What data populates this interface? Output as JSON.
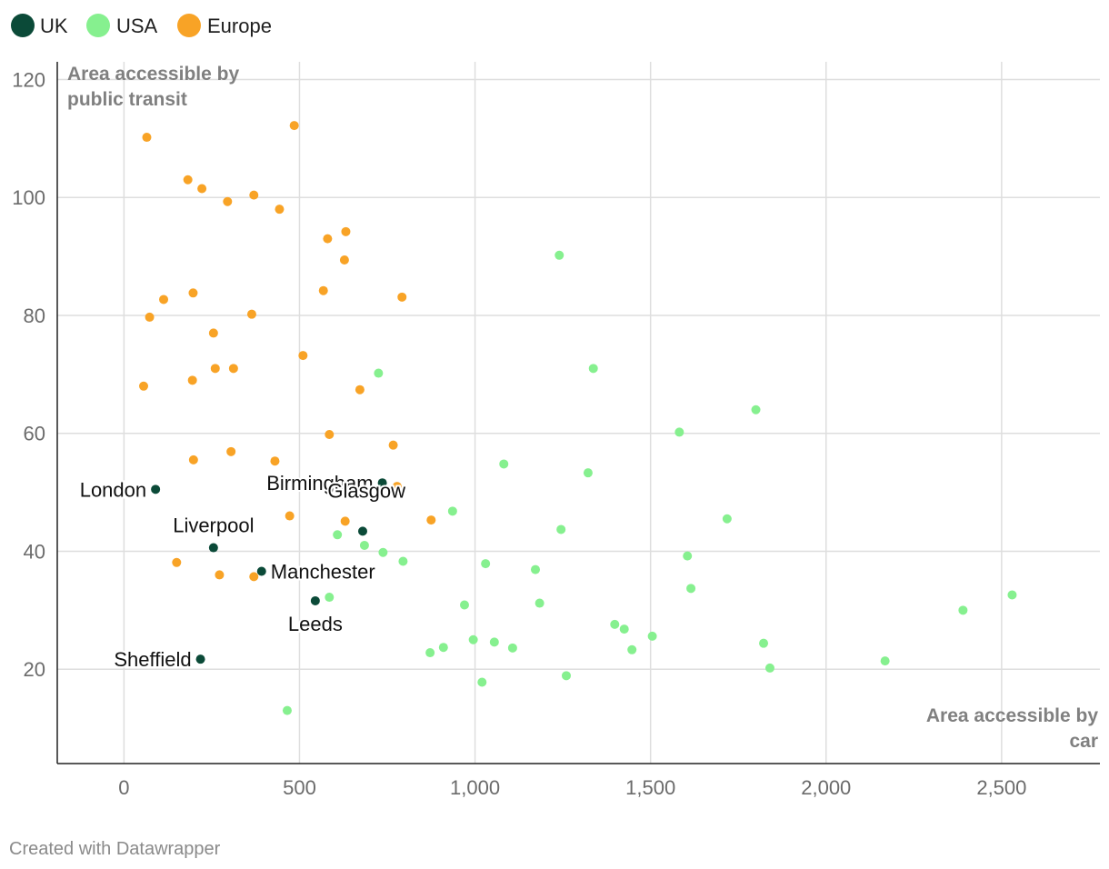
{
  "legend": [
    {
      "name": "UK",
      "color": "#0b4a38"
    },
    {
      "name": "USA",
      "color": "#86f08f"
    },
    {
      "name": "Europe",
      "color": "#f8a326"
    }
  ],
  "footer": "Created with Datawrapper",
  "chart_data": {
    "type": "scatter",
    "ylabel": [
      "Area accessible by",
      "public transit"
    ],
    "xlabel": [
      "Area accessible by",
      "car"
    ],
    "xlim": [
      -190,
      2780
    ],
    "ylim": [
      4,
      123
    ],
    "xticks": [
      0,
      500,
      1000,
      1500,
      2000,
      2500
    ],
    "xtick_labels": [
      "0",
      "500",
      "1,000",
      "1,500",
      "2,000",
      "2,500"
    ],
    "yticks": [
      20,
      40,
      60,
      80,
      100,
      120
    ],
    "ytick_labels": [
      "20",
      "40",
      "60",
      "80",
      "100",
      "120"
    ],
    "grid": "on",
    "legend_placement": "top-left",
    "series": [
      {
        "name": "Europe",
        "color": "#f8a326",
        "points": [
          [
            65,
            110.2
          ],
          [
            485,
            112.2
          ],
          [
            182,
            103
          ],
          [
            222,
            101.5
          ],
          [
            295,
            99.3
          ],
          [
            370,
            100.4
          ],
          [
            443,
            98
          ],
          [
            580,
            93
          ],
          [
            632,
            94.2
          ],
          [
            628,
            89.4
          ],
          [
            568,
            84.2
          ],
          [
            792,
            83.1
          ],
          [
            197,
            83.8
          ],
          [
            113,
            82.7
          ],
          [
            73,
            79.7
          ],
          [
            364,
            80.2
          ],
          [
            255,
            77
          ],
          [
            510,
            73.2
          ],
          [
            260,
            71
          ],
          [
            312,
            71
          ],
          [
            56,
            68
          ],
          [
            195,
            69
          ],
          [
            672,
            67.4
          ],
          [
            585,
            59.8
          ],
          [
            767,
            58
          ],
          [
            305,
            56.9
          ],
          [
            198,
            55.5
          ],
          [
            430,
            55.3
          ],
          [
            778,
            51
          ],
          [
            472,
            46
          ],
          [
            630,
            45.1
          ],
          [
            875,
            45.3
          ],
          [
            150,
            38.1
          ],
          [
            272,
            36
          ],
          [
            370,
            35.7
          ]
        ]
      },
      {
        "name": "USA",
        "color": "#86f08f",
        "points": [
          [
            1240,
            90.2
          ],
          [
            1337,
            71
          ],
          [
            725,
            70.2
          ],
          [
            1800,
            64
          ],
          [
            1582,
            60.2
          ],
          [
            1082,
            54.8
          ],
          [
            1322,
            53.3
          ],
          [
            936,
            46.8
          ],
          [
            1718,
            45.5
          ],
          [
            1245,
            43.7
          ],
          [
            608,
            42.8
          ],
          [
            685,
            41
          ],
          [
            738,
            39.8
          ],
          [
            795,
            38.3
          ],
          [
            1605,
            39.2
          ],
          [
            1030,
            37.9
          ],
          [
            1172,
            36.9
          ],
          [
            1615,
            33.7
          ],
          [
            585,
            32.2
          ],
          [
            970,
            30.9
          ],
          [
            1184,
            31.2
          ],
          [
            2390,
            30
          ],
          [
            2530,
            32.6
          ],
          [
            1398,
            27.6
          ],
          [
            1425,
            26.8
          ],
          [
            1505,
            25.6
          ],
          [
            995,
            25
          ],
          [
            1055,
            24.6
          ],
          [
            1822,
            24.4
          ],
          [
            872,
            22.8
          ],
          [
            910,
            23.7
          ],
          [
            1107,
            23.6
          ],
          [
            1447,
            23.3
          ],
          [
            2168,
            21.4
          ],
          [
            1840,
            20.2
          ],
          [
            1260,
            18.9
          ],
          [
            1020,
            17.8
          ],
          [
            465,
            13
          ]
        ]
      },
      {
        "name": "UK",
        "color": "#0b4a38",
        "points": [
          {
            "x": 90,
            "y": 50.5,
            "label": "London"
          },
          {
            "x": 736,
            "y": 51.6,
            "label": "Birmingham"
          },
          {
            "x": 680,
            "y": 43.4,
            "label": "Glasgow"
          },
          {
            "x": 255,
            "y": 40.6,
            "label": "Liverpool"
          },
          {
            "x": 392,
            "y": 36.6,
            "label": "Manchester"
          },
          {
            "x": 545,
            "y": 31.6,
            "label": "Leeds"
          },
          {
            "x": 218,
            "y": 21.7,
            "label": "Sheffield"
          }
        ]
      }
    ]
  }
}
